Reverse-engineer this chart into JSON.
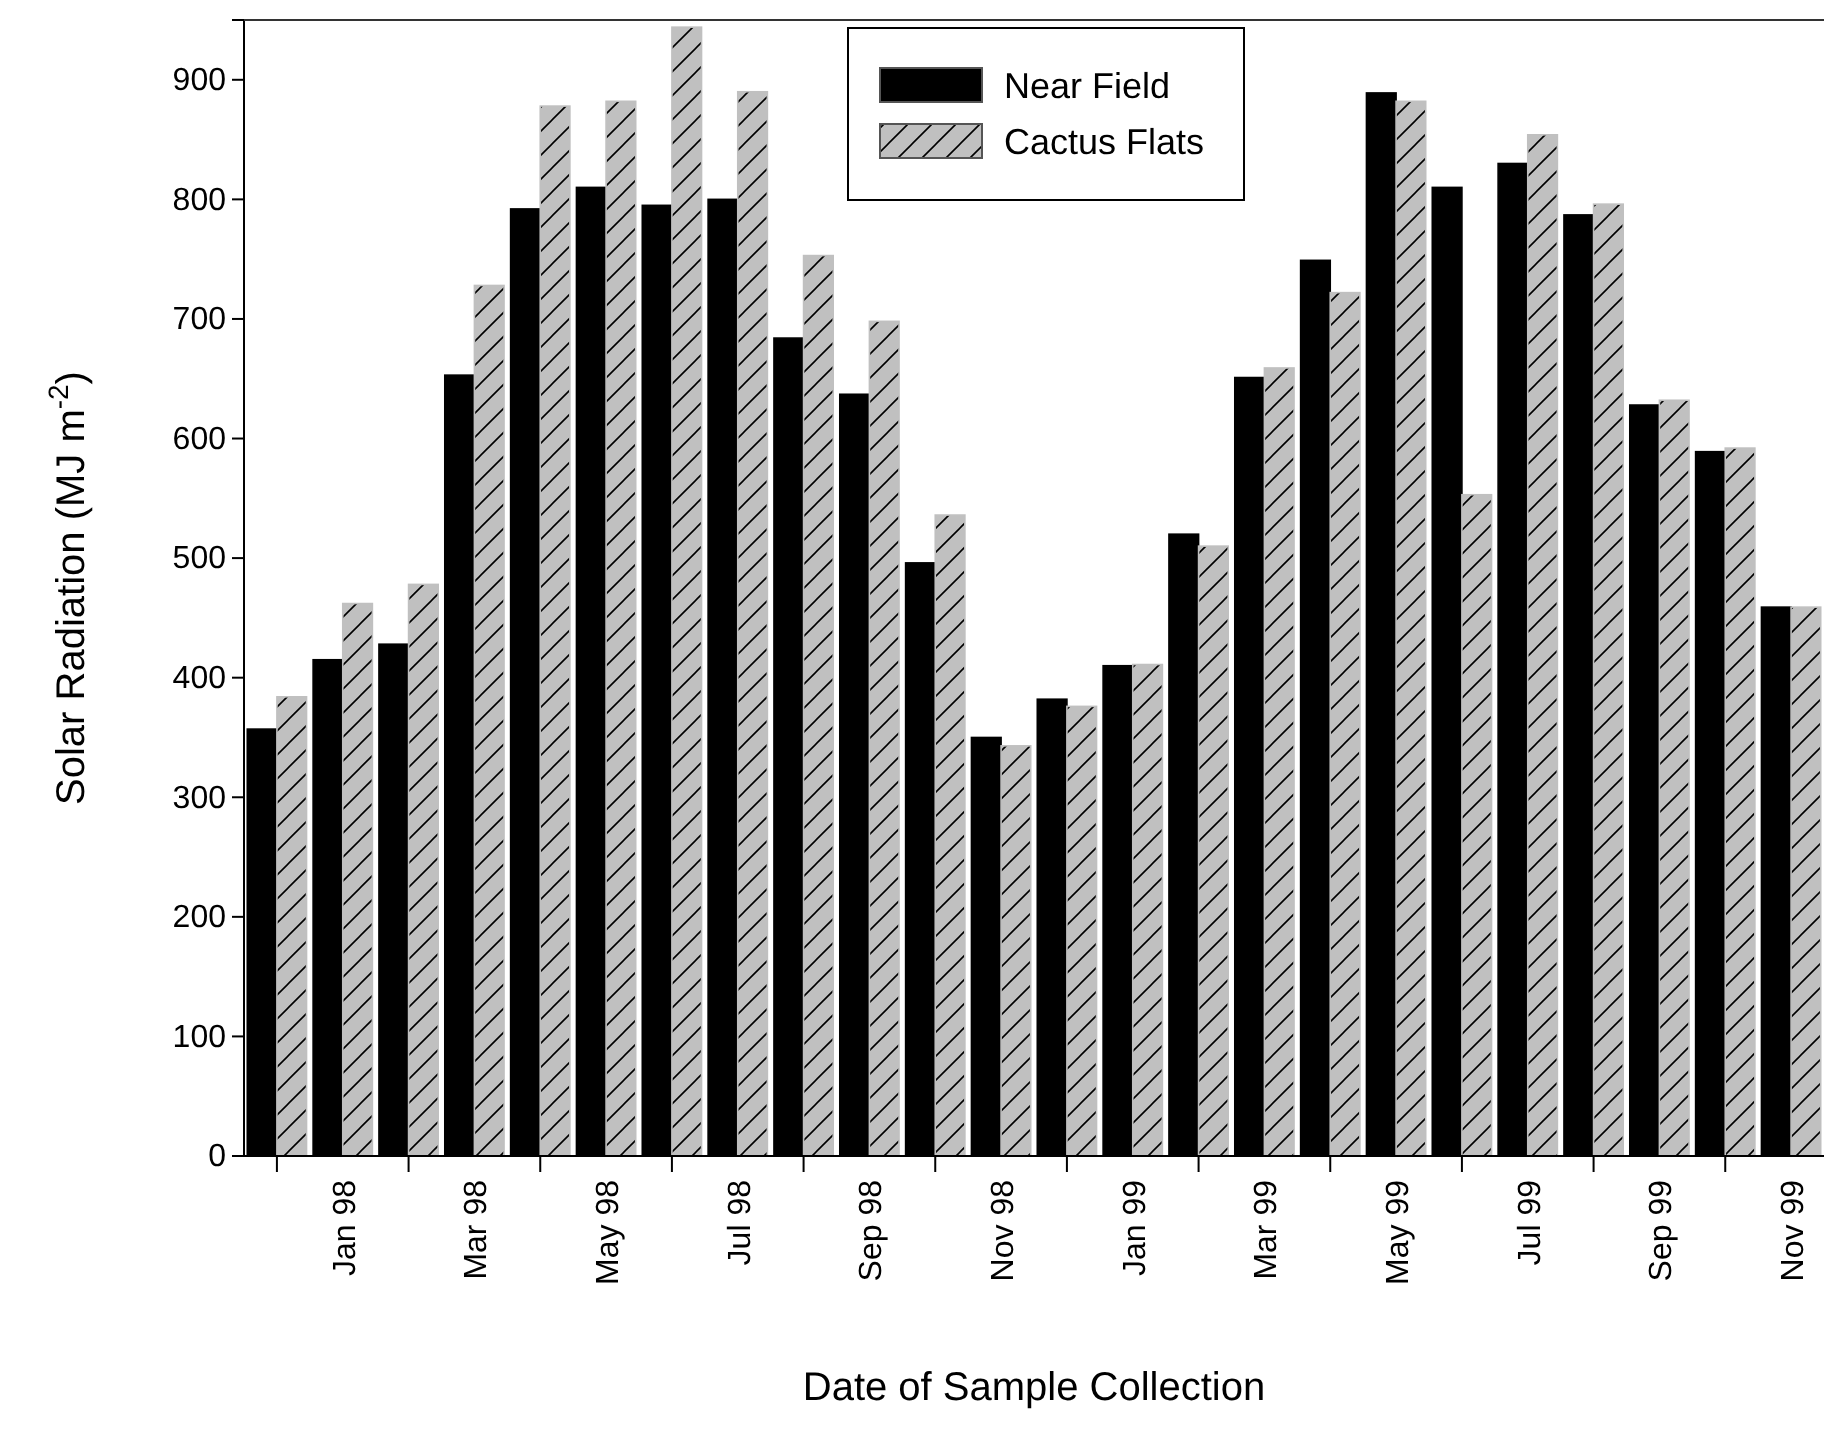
{
  "chart_data": {
    "type": "bar",
    "xlabel": "Date of Sample Collection",
    "ylabel": "Solar Radiation (MJ m$^{-2}$)",
    "categories": [
      null,
      "Jan 98",
      null,
      "Mar 98",
      null,
      "May 98",
      null,
      "Jul 98",
      null,
      "Sep 98",
      null,
      "Nov 98",
      null,
      "Jan 99",
      null,
      "Mar 99",
      null,
      "May 99",
      null,
      "Jul 99",
      null,
      "Sep 99",
      null,
      "Nov 99"
    ],
    "series": [
      {
        "name": "Near Field",
        "color": "#000000",
        "values": [
          357,
          415,
          428,
          653,
          792,
          810,
          795,
          800,
          684,
          637,
          496,
          350,
          382,
          410,
          520,
          651,
          749,
          889,
          810,
          830,
          787,
          628,
          589,
          459
        ]
      },
      {
        "name": "Cactus Flats",
        "color": "#c0c0c0",
        "values": [
          384,
          462,
          478,
          728,
          878,
          882,
          944,
          890,
          753,
          698,
          536,
          343,
          376,
          411,
          510,
          659,
          722,
          882,
          553,
          854,
          796,
          632,
          592,
          459
        ]
      }
    ],
    "ylim": [
      0,
      950
    ],
    "yticks": [
      0,
      100,
      200,
      300,
      400,
      500,
      600,
      700,
      800,
      900
    ],
    "legend": "top",
    "grid": false
  }
}
